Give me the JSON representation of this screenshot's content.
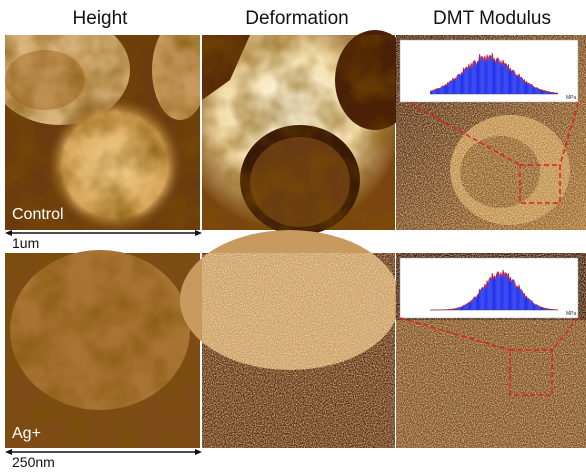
{
  "columns": [
    "Height",
    "Deformation",
    "DMT Modulus"
  ],
  "rows": [
    {
      "label": "Control",
      "scale_bar": "1um"
    },
    {
      "label": "Ag+",
      "scale_bar": "250nm"
    }
  ],
  "inset_unit": "MPa"
}
